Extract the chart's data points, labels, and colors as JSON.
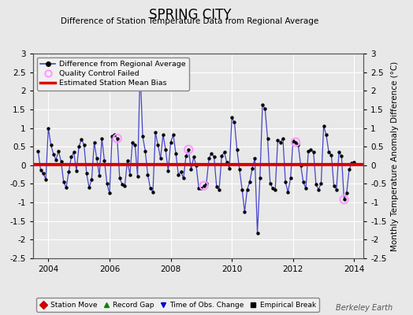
{
  "title": "SPRING CITY",
  "subtitle": "Difference of Station Temperature Data from Regional Average",
  "ylabel": "Monthly Temperature Anomaly Difference (°C)",
  "bias_value": 0.02,
  "xlim": [
    2003.5,
    2014.3
  ],
  "ylim": [
    -2.5,
    3.0
  ],
  "yticks": [
    -2.5,
    -2,
    -1.5,
    -1,
    -0.5,
    0,
    0.5,
    1,
    1.5,
    2,
    2.5,
    3
  ],
  "xticks": [
    2004,
    2006,
    2008,
    2010,
    2012,
    2014
  ],
  "background_color": "#e8e8e8",
  "plot_bg_color": "#e8e8e8",
  "grid_color": "#d0d0d0",
  "line_color": "#4444cc",
  "marker_color": "#000000",
  "bias_color": "#dd0000",
  "qc_color": "#ff99ff",
  "watermark": "Berkeley Earth",
  "time_series": [
    [
      2003.667,
      0.38
    ],
    [
      2003.75,
      -0.14
    ],
    [
      2003.833,
      -0.22
    ],
    [
      2003.917,
      -0.38
    ],
    [
      2004.0,
      1.0
    ],
    [
      2004.083,
      0.55
    ],
    [
      2004.167,
      0.3
    ],
    [
      2004.25,
      0.15
    ],
    [
      2004.333,
      0.38
    ],
    [
      2004.417,
      0.1
    ],
    [
      2004.5,
      -0.45
    ],
    [
      2004.583,
      -0.6
    ],
    [
      2004.667,
      -0.18
    ],
    [
      2004.75,
      0.22
    ],
    [
      2004.833,
      0.35
    ],
    [
      2004.917,
      -0.15
    ],
    [
      2005.0,
      0.5
    ],
    [
      2005.083,
      0.7
    ],
    [
      2005.167,
      0.55
    ],
    [
      2005.25,
      -0.22
    ],
    [
      2005.333,
      -0.6
    ],
    [
      2005.417,
      -0.38
    ],
    [
      2005.5,
      0.62
    ],
    [
      2005.583,
      0.18
    ],
    [
      2005.667,
      -0.28
    ],
    [
      2005.75,
      0.72
    ],
    [
      2005.833,
      0.12
    ],
    [
      2005.917,
      -0.5
    ],
    [
      2006.0,
      -0.75
    ],
    [
      2006.083,
      0.78
    ],
    [
      2006.167,
      0.82
    ],
    [
      2006.25,
      0.72
    ],
    [
      2006.333,
      -0.35
    ],
    [
      2006.417,
      -0.52
    ],
    [
      2006.5,
      -0.55
    ],
    [
      2006.583,
      0.12
    ],
    [
      2006.667,
      -0.25
    ],
    [
      2006.75,
      0.62
    ],
    [
      2006.833,
      0.55
    ],
    [
      2006.917,
      -0.3
    ],
    [
      2007.0,
      2.62
    ],
    [
      2007.083,
      0.78
    ],
    [
      2007.167,
      0.38
    ],
    [
      2007.25,
      -0.25
    ],
    [
      2007.333,
      -0.62
    ],
    [
      2007.417,
      -0.72
    ],
    [
      2007.5,
      0.88
    ],
    [
      2007.583,
      0.55
    ],
    [
      2007.667,
      0.18
    ],
    [
      2007.75,
      0.82
    ],
    [
      2007.833,
      0.42
    ],
    [
      2007.917,
      -0.15
    ],
    [
      2008.0,
      0.62
    ],
    [
      2008.083,
      0.82
    ],
    [
      2008.167,
      0.32
    ],
    [
      2008.25,
      -0.25
    ],
    [
      2008.333,
      -0.18
    ],
    [
      2008.417,
      -0.35
    ],
    [
      2008.5,
      0.25
    ],
    [
      2008.583,
      0.42
    ],
    [
      2008.667,
      -0.12
    ],
    [
      2008.75,
      0.22
    ],
    [
      2008.833,
      0.0
    ],
    [
      2008.917,
      -0.62
    ],
    [
      2009.0,
      -0.62
    ],
    [
      2009.083,
      -0.55
    ],
    [
      2009.167,
      -0.48
    ],
    [
      2009.25,
      0.18
    ],
    [
      2009.333,
      0.32
    ],
    [
      2009.417,
      0.22
    ],
    [
      2009.5,
      -0.58
    ],
    [
      2009.583,
      -0.65
    ],
    [
      2009.667,
      0.25
    ],
    [
      2009.75,
      0.35
    ],
    [
      2009.833,
      0.08
    ],
    [
      2009.917,
      -0.08
    ],
    [
      2010.0,
      1.28
    ],
    [
      2010.083,
      1.15
    ],
    [
      2010.167,
      0.42
    ],
    [
      2010.25,
      -0.12
    ],
    [
      2010.333,
      -0.65
    ],
    [
      2010.417,
      -1.25
    ],
    [
      2010.5,
      -0.65
    ],
    [
      2010.583,
      -0.45
    ],
    [
      2010.667,
      -0.08
    ],
    [
      2010.75,
      0.18
    ],
    [
      2010.833,
      -1.82
    ],
    [
      2010.917,
      -0.35
    ],
    [
      2011.0,
      1.62
    ],
    [
      2011.083,
      1.52
    ],
    [
      2011.167,
      0.72
    ],
    [
      2011.25,
      -0.48
    ],
    [
      2011.333,
      -0.62
    ],
    [
      2011.417,
      -0.65
    ],
    [
      2011.5,
      0.68
    ],
    [
      2011.583,
      0.62
    ],
    [
      2011.667,
      0.72
    ],
    [
      2011.75,
      -0.45
    ],
    [
      2011.833,
      -0.72
    ],
    [
      2011.917,
      -0.35
    ],
    [
      2012.0,
      0.65
    ],
    [
      2012.083,
      0.62
    ],
    [
      2012.167,
      0.55
    ],
    [
      2012.25,
      0.0
    ],
    [
      2012.333,
      -0.45
    ],
    [
      2012.417,
      -0.62
    ],
    [
      2012.5,
      0.38
    ],
    [
      2012.583,
      0.42
    ],
    [
      2012.667,
      0.35
    ],
    [
      2012.75,
      -0.52
    ],
    [
      2012.833,
      -0.65
    ],
    [
      2012.917,
      -0.48
    ],
    [
      2013.0,
      1.05
    ],
    [
      2013.083,
      0.82
    ],
    [
      2013.167,
      0.35
    ],
    [
      2013.25,
      0.28
    ],
    [
      2013.333,
      -0.55
    ],
    [
      2013.417,
      -0.65
    ],
    [
      2013.5,
      0.35
    ],
    [
      2013.583,
      0.25
    ],
    [
      2013.667,
      -0.92
    ],
    [
      2013.75,
      -0.75
    ],
    [
      2013.833,
      -0.12
    ],
    [
      2013.917,
      0.05
    ],
    [
      2014.0,
      0.08
    ]
  ],
  "qc_failed_points": [
    [
      2006.25,
      0.72
    ],
    [
      2008.583,
      0.42
    ],
    [
      2009.083,
      -0.55
    ],
    [
      2012.083,
      0.62
    ],
    [
      2013.667,
      -0.92
    ]
  ]
}
